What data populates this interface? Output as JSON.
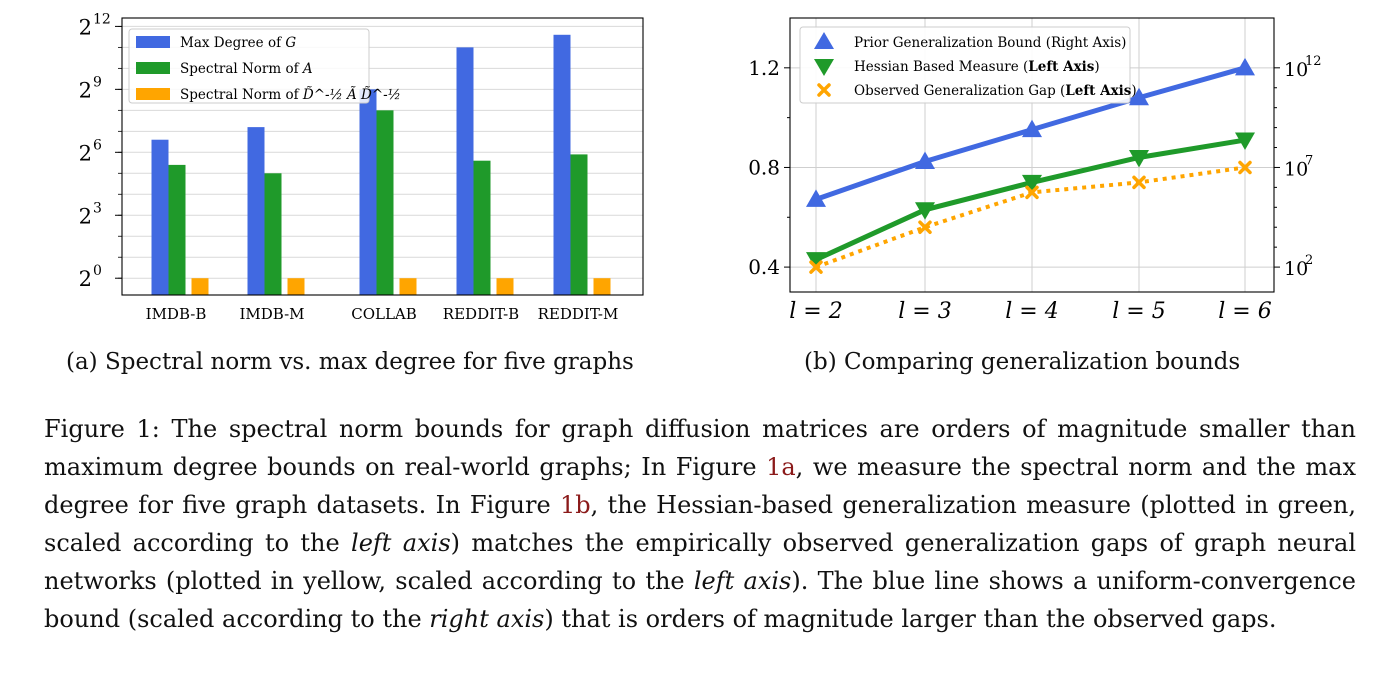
{
  "figure_a": {
    "subcaption": "(a) Spectral norm vs. max degree for five graphs",
    "y_ticks": [
      {
        "exp": 0,
        "label": "0"
      },
      {
        "exp": 3,
        "label": "3"
      },
      {
        "exp": 6,
        "label": "6"
      },
      {
        "exp": 9,
        "label": "9"
      },
      {
        "exp": 12,
        "label": "12"
      }
    ],
    "legend": [
      {
        "name": "Max Degree of ",
        "math": "G",
        "color": "#4169e1"
      },
      {
        "name": "Spectral Norm of ",
        "math": "A",
        "color": "#1f9a2a"
      },
      {
        "name": "Spectral Norm of ",
        "math": "D̃^-½ Ã D̃^-½",
        "color": "#ffa500"
      }
    ]
  },
  "figure_b": {
    "subcaption": "(b) Comparing generalization bounds",
    "left_ticks": [
      "0.4",
      "0.8",
      "1.2"
    ],
    "right_ticks": [
      {
        "base": "10",
        "exp": "2"
      },
      {
        "base": "10",
        "exp": "7"
      },
      {
        "base": "10",
        "exp": "12"
      }
    ],
    "legend": [
      {
        "text": "Prior Generalization Bound (Right Axis)",
        "bold": "",
        "color": "#4169e1"
      },
      {
        "text": "Hessian Based Measure (",
        "bold": "Left Axis",
        "tail": ")",
        "color": "#1f9a2a"
      },
      {
        "text": "Observed Generalization Gap (",
        "bold": "Left Axis",
        "tail": ")",
        "color": "#ffa500"
      }
    ]
  },
  "chart_data": [
    {
      "type": "bar",
      "categories": [
        "IMDB-B",
        "IMDB-M",
        "COLLAB",
        "REDDIT-B",
        "REDDIT-M"
      ],
      "yscale": "log2",
      "ylim_exp": [
        -0.8,
        12.4
      ],
      "series": [
        {
          "name": "Max Degree of G",
          "color": "#4169e1",
          "values_log2": [
            6.6,
            7.2,
            9.0,
            11.0,
            11.6
          ]
        },
        {
          "name": "Spectral Norm of A",
          "color": "#1f9a2a",
          "values_log2": [
            5.4,
            5.0,
            8.0,
            5.6,
            5.9
          ]
        },
        {
          "name": "Spectral Norm of D^-1/2 A D^-1/2",
          "color": "#ffa500",
          "values_log2": [
            0,
            0,
            0,
            0,
            0
          ]
        }
      ],
      "legend_position": "upper-left",
      "grid": true
    },
    {
      "type": "line",
      "x": [
        "l = 2",
        "l = 3",
        "l = 4",
        "l = 5",
        "l = 6"
      ],
      "ylim_left": [
        0.3,
        1.4
      ],
      "right_axis": "log10",
      "series": [
        {
          "name": "Prior Generalization Bound (Right Axis)",
          "axis": "right",
          "color": "#4169e1",
          "marker": "triangle-up",
          "values_log10": [
            5.4,
            7.3,
            8.9,
            10.5,
            12.0
          ]
        },
        {
          "name": "Hessian Based Measure (Left Axis)",
          "axis": "left",
          "color": "#1f9a2a",
          "marker": "triangle-down",
          "values": [
            0.43,
            0.63,
            0.74,
            0.84,
            0.91
          ]
        },
        {
          "name": "Observed Generalization Gap (Left Axis)",
          "axis": "left",
          "color": "#ffa500",
          "marker": "x",
          "dashed": true,
          "values": [
            0.4,
            0.56,
            0.7,
            0.74,
            0.8
          ]
        }
      ],
      "legend_position": "upper-left",
      "grid": true
    }
  ],
  "caption": {
    "label": "Figure 1:",
    "p1": " The spectral norm bounds for graph diffusion matrices are orders of magnitude smaller than maximum degree bounds on real-world graphs; In Figure ",
    "ref1": "1a",
    "p2": ", we measure the spectral norm and the max degree for five graph datasets. In Figure ",
    "ref2": "1b",
    "p3": ", the Hessian-based generalization measure (plotted in green, scaled according to the ",
    "it1": "left axis",
    "p4": ") matches the empirically observed generalization gaps of graph neural networks (plotted in yellow, scaled according to the ",
    "it2": "left axis",
    "p5": "). The blue line shows a uniform-convergence bound (scaled according to the ",
    "it3": "right axis",
    "p6": ") that is orders of magnitude larger than the observed gaps."
  }
}
